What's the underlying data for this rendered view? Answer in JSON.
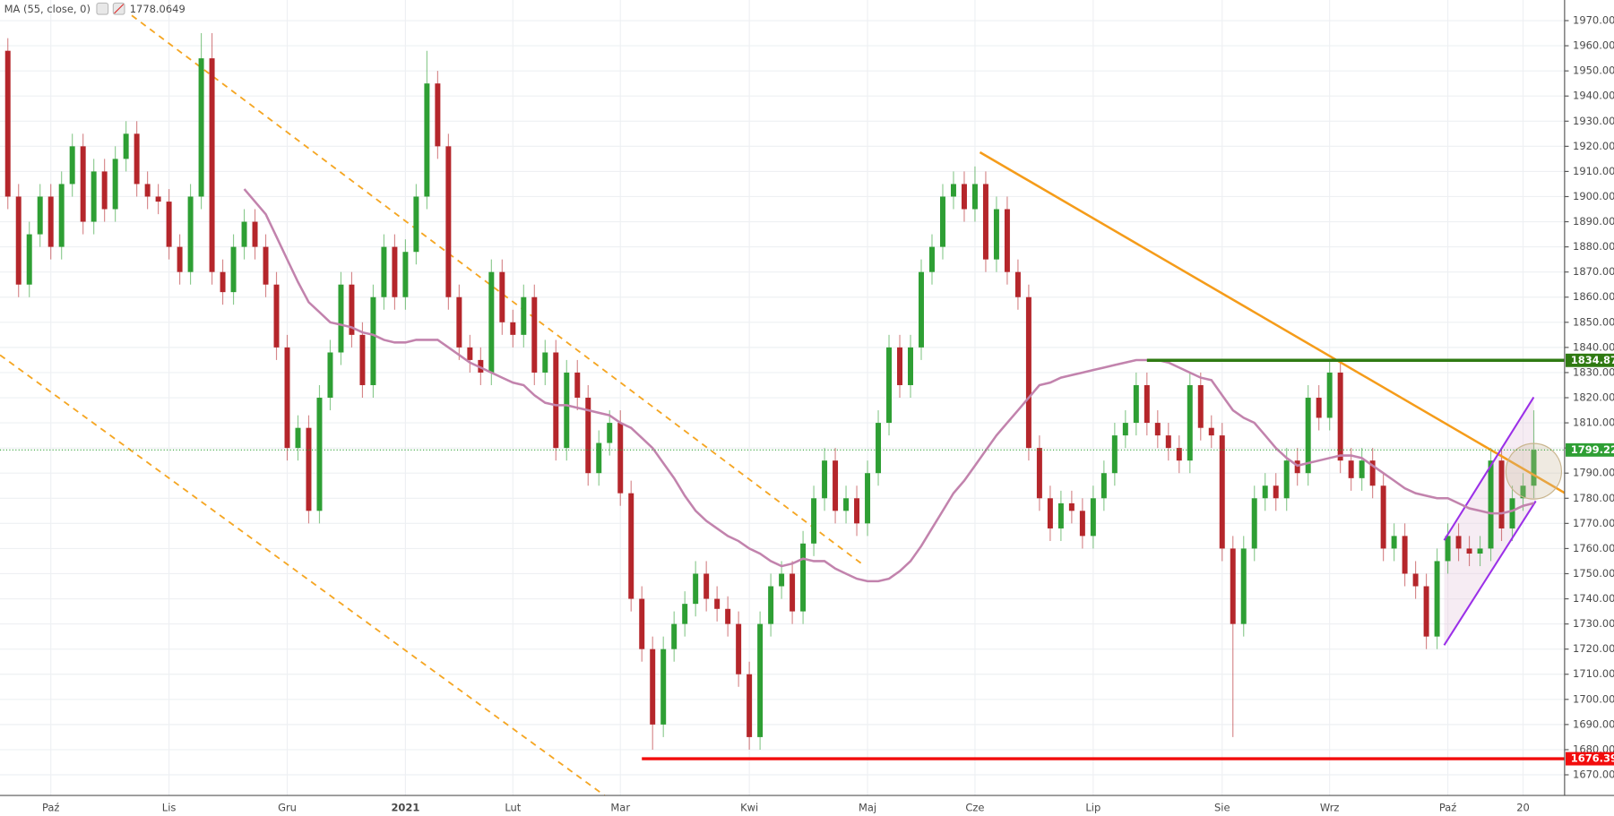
{
  "chart_data": {
    "type": "candlestick",
    "up_color": "#2e9f34",
    "down_color": "#b5262b",
    "ylim": [
      1661.8,
      1978.2
    ],
    "yticks": [
      {
        "value": 1670,
        "label": "1670.00"
      },
      {
        "value": 1680,
        "label": "1680.00"
      },
      {
        "value": 1690,
        "label": "1690.00"
      },
      {
        "value": 1700,
        "label": "1700.00"
      },
      {
        "value": 1710,
        "label": "1710.00"
      },
      {
        "value": 1720,
        "label": "1720.00"
      },
      {
        "value": 1730,
        "label": "1730.00"
      },
      {
        "value": 1740,
        "label": "1740.00"
      },
      {
        "value": 1750,
        "label": "1750.00"
      },
      {
        "value": 1760,
        "label": "1760.00"
      },
      {
        "value": 1770,
        "label": "1770.00"
      },
      {
        "value": 1780,
        "label": "1780.00"
      },
      {
        "value": 1790,
        "label": "1790.00"
      },
      {
        "value": 1800,
        "label": "1800.00"
      },
      {
        "value": 1810,
        "label": "1810.00"
      },
      {
        "value": 1820,
        "label": "1820.00"
      },
      {
        "value": 1830,
        "label": "1830.00"
      },
      {
        "value": 1840,
        "label": "1840.00"
      },
      {
        "value": 1850,
        "label": "1850.00"
      },
      {
        "value": 1860,
        "label": "1860.00"
      },
      {
        "value": 1870,
        "label": "1870.00"
      },
      {
        "value": 1880,
        "label": "1880.00"
      },
      {
        "value": 1890,
        "label": "1890.00"
      },
      {
        "value": 1900,
        "label": "1900.00"
      },
      {
        "value": 1910,
        "label": "1910.00"
      },
      {
        "value": 1920,
        "label": "1920.00"
      },
      {
        "value": 1930,
        "label": "1930.00"
      },
      {
        "value": 1940,
        "label": "1940.00"
      },
      {
        "value": 1950,
        "label": "1950.00"
      },
      {
        "value": 1960,
        "label": "1960.00"
      },
      {
        "value": 1970,
        "label": "1970.00"
      }
    ],
    "grid": true,
    "categories": [
      null,
      null,
      null,
      null,
      "Paź",
      null,
      null,
      null,
      null,
      null,
      null,
      null,
      null,
      null,
      null,
      "Lis",
      null,
      null,
      null,
      null,
      null,
      null,
      null,
      null,
      null,
      null,
      "Gru",
      null,
      null,
      null,
      null,
      null,
      null,
      null,
      null,
      null,
      null,
      "2021",
      null,
      null,
      null,
      null,
      null,
      null,
      null,
      null,
      null,
      "Lut",
      null,
      null,
      null,
      null,
      null,
      null,
      null,
      null,
      null,
      "Mar",
      null,
      null,
      null,
      null,
      null,
      null,
      null,
      null,
      null,
      null,
      null,
      "Kwi",
      null,
      null,
      null,
      null,
      null,
      null,
      null,
      null,
      null,
      null,
      "Maj",
      null,
      null,
      null,
      null,
      null,
      null,
      null,
      null,
      null,
      "Cze",
      null,
      null,
      null,
      null,
      null,
      null,
      null,
      null,
      null,
      null,
      "Lip",
      null,
      null,
      null,
      null,
      null,
      null,
      null,
      null,
      null,
      null,
      null,
      "Sie",
      null,
      null,
      null,
      null,
      null,
      null,
      null,
      null,
      null,
      "Wrz",
      null,
      null,
      null,
      null,
      null,
      null,
      null,
      null,
      null,
      null,
      "Paź",
      null,
      null,
      null,
      null,
      null,
      null,
      "20",
      null
    ],
    "open": [
      1958,
      1900,
      1865,
      1885,
      1900,
      1880,
      1905,
      1920,
      1890,
      1910,
      1895,
      1915,
      1925,
      1905,
      1900,
      1898,
      1880,
      1870,
      1900,
      1955,
      1870,
      1862,
      1880,
      1890,
      1880,
      1865,
      1840,
      1800,
      1808,
      1775,
      1820,
      1838,
      1865,
      1845,
      1825,
      1860,
      1880,
      1860,
      1878,
      1900,
      1945,
      1920,
      1860,
      1840,
      1835,
      1830,
      1870,
      1850,
      1845,
      1860,
      1830,
      1838,
      1800,
      1830,
      1820,
      1790,
      1802,
      1810,
      1782,
      1740,
      1720,
      1690,
      1720,
      1730,
      1738,
      1750,
      1740,
      1736,
      1730,
      1710,
      1685,
      1730,
      1745,
      1750,
      1735,
      1762,
      1780,
      1795,
      1775,
      1780,
      1770,
      1790,
      1810,
      1840,
      1825,
      1840,
      1870,
      1880,
      1900,
      1905,
      1895,
      1905,
      1875,
      1895,
      1870,
      1860,
      1800,
      1780,
      1768,
      1778,
      1775,
      1765,
      1780,
      1790,
      1805,
      1810,
      1825,
      1810,
      1805,
      1800,
      1795,
      1825,
      1808,
      1805,
      1760,
      1730,
      1760,
      1780,
      1785,
      1780,
      1795,
      1790,
      1820,
      1812,
      1830,
      1795,
      1788,
      1795,
      1785,
      1760,
      1765,
      1750,
      1745,
      1725,
      1755,
      1765,
      1760,
      1758,
      1760,
      1795,
      1768,
      1780,
      1785
    ],
    "high": [
      1963,
      1905,
      1890,
      1905,
      1905,
      1910,
      1925,
      1925,
      1915,
      1915,
      1920,
      1930,
      1930,
      1910,
      1905,
      1903,
      1885,
      1905,
      1965,
      1965,
      1875,
      1885,
      1895,
      1895,
      1885,
      1870,
      1845,
      1813,
      1813,
      1825,
      1843,
      1870,
      1870,
      1850,
      1865,
      1885,
      1885,
      1883,
      1905,
      1958,
      1950,
      1925,
      1865,
      1845,
      1840,
      1875,
      1875,
      1855,
      1865,
      1865,
      1843,
      1843,
      1835,
      1835,
      1825,
      1807,
      1815,
      1815,
      1787,
      1745,
      1725,
      1725,
      1735,
      1743,
      1755,
      1755,
      1745,
      1741,
      1735,
      1715,
      1735,
      1750,
      1755,
      1755,
      1767,
      1785,
      1800,
      1800,
      1785,
      1785,
      1795,
      1815,
      1845,
      1845,
      1845,
      1875,
      1885,
      1905,
      1910,
      1910,
      1912,
      1910,
      1900,
      1900,
      1875,
      1865,
      1805,
      1785,
      1783,
      1783,
      1780,
      1785,
      1795,
      1810,
      1815,
      1830,
      1830,
      1815,
      1810,
      1805,
      1830,
      1830,
      1813,
      1810,
      1765,
      1765,
      1785,
      1790,
      1790,
      1800,
      1800,
      1825,
      1825,
      1835,
      1835,
      1800,
      1800,
      1800,
      1790,
      1770,
      1770,
      1755,
      1750,
      1760,
      1770,
      1770,
      1765,
      1765,
      1800,
      1800,
      1785,
      1790,
      1815
    ],
    "low": [
      1895,
      1860,
      1860,
      1880,
      1875,
      1875,
      1900,
      1885,
      1885,
      1890,
      1890,
      1910,
      1900,
      1895,
      1893,
      1875,
      1865,
      1865,
      1895,
      1865,
      1857,
      1857,
      1875,
      1875,
      1860,
      1835,
      1795,
      1795,
      1770,
      1770,
      1815,
      1833,
      1840,
      1820,
      1820,
      1855,
      1855,
      1855,
      1873,
      1895,
      1915,
      1855,
      1835,
      1830,
      1825,
      1825,
      1845,
      1840,
      1840,
      1825,
      1825,
      1795,
      1795,
      1815,
      1785,
      1785,
      1797,
      1777,
      1735,
      1715,
      1680,
      1685,
      1715,
      1725,
      1733,
      1735,
      1731,
      1725,
      1705,
      1680,
      1680,
      1725,
      1740,
      1730,
      1730,
      1757,
      1775,
      1770,
      1770,
      1765,
      1765,
      1785,
      1805,
      1820,
      1820,
      1835,
      1865,
      1875,
      1895,
      1890,
      1890,
      1870,
      1870,
      1865,
      1855,
      1795,
      1775,
      1763,
      1763,
      1770,
      1760,
      1760,
      1775,
      1785,
      1800,
      1805,
      1805,
      1800,
      1795,
      1790,
      1790,
      1803,
      1800,
      1755,
      1685,
      1725,
      1755,
      1775,
      1775,
      1775,
      1785,
      1785,
      1807,
      1807,
      1790,
      1783,
      1783,
      1780,
      1755,
      1755,
      1745,
      1740,
      1720,
      1720,
      1750,
      1755,
      1753,
      1753,
      1755,
      1763,
      1763,
      1775,
      1780
    ],
    "close": [
      1900,
      1865,
      1885,
      1900,
      1880,
      1905,
      1920,
      1890,
      1910,
      1895,
      1915,
      1925,
      1905,
      1900,
      1898,
      1880,
      1870,
      1900,
      1955,
      1870,
      1862,
      1880,
      1890,
      1880,
      1865,
      1840,
      1800,
      1808,
      1775,
      1820,
      1838,
      1865,
      1845,
      1825,
      1860,
      1880,
      1860,
      1878,
      1900,
      1945,
      1920,
      1860,
      1840,
      1835,
      1830,
      1870,
      1850,
      1845,
      1860,
      1830,
      1838,
      1800,
      1830,
      1820,
      1790,
      1802,
      1810,
      1782,
      1740,
      1720,
      1690,
      1720,
      1730,
      1738,
      1750,
      1740,
      1736,
      1730,
      1710,
      1685,
      1730,
      1745,
      1750,
      1735,
      1762,
      1780,
      1795,
      1775,
      1780,
      1770,
      1790,
      1810,
      1840,
      1825,
      1840,
      1870,
      1880,
      1900,
      1905,
      1895,
      1905,
      1875,
      1895,
      1870,
      1860,
      1800,
      1780,
      1768,
      1778,
      1775,
      1765,
      1780,
      1790,
      1805,
      1810,
      1825,
      1810,
      1805,
      1800,
      1795,
      1825,
      1808,
      1805,
      1760,
      1730,
      1760,
      1780,
      1785,
      1780,
      1795,
      1790,
      1820,
      1812,
      1830,
      1795,
      1788,
      1795,
      1785,
      1760,
      1765,
      1750,
      1745,
      1725,
      1755,
      1765,
      1760,
      1758,
      1760,
      1795,
      1768,
      1780,
      1785,
      1799.22
    ],
    "last_price_color": "#2e9f34",
    "overlay": {
      "name": "MA (55, close, 0)",
      "color": "#c283ad",
      "values": [
        null,
        null,
        null,
        null,
        null,
        null,
        null,
        null,
        null,
        null,
        null,
        null,
        null,
        null,
        null,
        null,
        null,
        null,
        null,
        null,
        null,
        null,
        1903,
        1898,
        1893,
        1884,
        1875,
        1866,
        1858,
        1854,
        1850,
        1849,
        1848,
        1846,
        1845,
        1843,
        1842,
        1842,
        1843,
        1843,
        1843,
        1840,
        1837,
        1834,
        1832,
        1830,
        1828,
        1826,
        1825,
        1821,
        1818,
        1817,
        1817,
        1816,
        1815,
        1814,
        1813,
        1810,
        1808,
        1804,
        1800,
        1794,
        1788,
        1781,
        1775,
        1771,
        1768,
        1765,
        1763,
        1760,
        1758,
        1755,
        1753,
        1754,
        1756,
        1755,
        1755,
        1752,
        1750,
        1748,
        1747,
        1747,
        1748,
        1751,
        1755,
        1761,
        1768,
        1775,
        1782,
        1787,
        1793,
        1799,
        1805,
        1810,
        1815,
        1820,
        1825,
        1826,
        1828,
        1829,
        1830,
        1831,
        1832,
        1833,
        1834,
        1835,
        1835,
        1835,
        1834,
        1832,
        1830,
        1828,
        1827,
        1821,
        1815,
        1812,
        1810,
        1805,
        1800,
        1796,
        1793,
        1794,
        1795,
        1796,
        1797,
        1797,
        1796,
        1793,
        1790,
        1787,
        1784,
        1782,
        1781,
        1780,
        1780,
        1778,
        1776,
        1775,
        1774,
        1774,
        1775,
        1777,
        1778.0649
      ]
    },
    "hlines": [
      {
        "value": 1834.87,
        "color": "#2f7a12",
        "start": 106
      },
      {
        "value": 1676.39,
        "color": "#f20d0d",
        "start": 59
      }
    ]
  }
}
